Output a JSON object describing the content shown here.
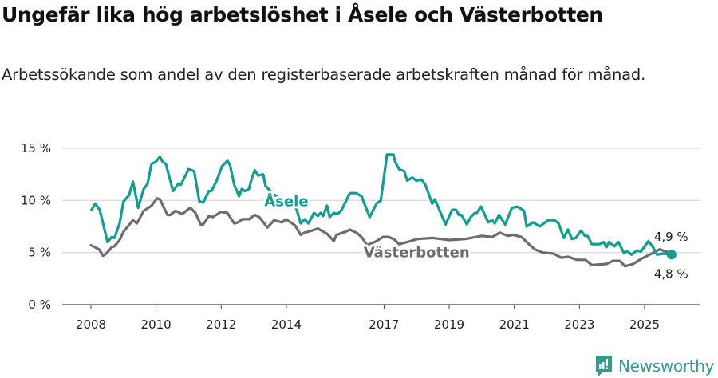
{
  "colors": {
    "asele": "#0f9e92",
    "vasterbotten": "#6d6b72",
    "grid": "#dddddd",
    "axis": "#444444",
    "brand": "#2f9c8c"
  },
  "chart_data": {
    "type": "line",
    "title": "Ungefär lika hög arbetslöshet i Åsele och Västerbotten",
    "subtitle": "Arbetssökande som andel av den registerbaserade arbetskraften månad för månad.",
    "xlabel": "",
    "ylabel": "",
    "xlim": [
      2007.1,
      2026.7
    ],
    "ylim": [
      0,
      15
    ],
    "y_ticks": [
      {
        "v": 0,
        "label": "0 %"
      },
      {
        "v": 5,
        "label": "5 %"
      },
      {
        "v": 10,
        "label": "10 %"
      },
      {
        "v": 15,
        "label": "15 %"
      }
    ],
    "x_ticks": [
      {
        "v": 2008,
        "label": "2008"
      },
      {
        "v": 2010,
        "label": "2010"
      },
      {
        "v": 2012,
        "label": "2012"
      },
      {
        "v": 2014,
        "label": "2014"
      },
      {
        "v": 2017,
        "label": "2017"
      },
      {
        "v": 2019,
        "label": "2019"
      },
      {
        "v": 2021,
        "label": "2021"
      },
      {
        "v": 2023,
        "label": "2023"
      },
      {
        "v": 2025,
        "label": "2025"
      }
    ],
    "grid": true,
    "series": [
      {
        "name": "Åsele",
        "label_at": [
          2014.0,
          9.9
        ],
        "end_label": "4,8 %",
        "points": [
          [
            2008.02,
            9.1
          ],
          [
            2008.13,
            9.7
          ],
          [
            2008.27,
            9.1
          ],
          [
            2008.51,
            6.0
          ],
          [
            2008.64,
            6.5
          ],
          [
            2008.72,
            6.4
          ],
          [
            2008.88,
            7.8
          ],
          [
            2009.0,
            9.9
          ],
          [
            2009.17,
            10.5
          ],
          [
            2009.29,
            11.8
          ],
          [
            2009.45,
            9.3
          ],
          [
            2009.62,
            11.1
          ],
          [
            2009.74,
            11.6
          ],
          [
            2009.86,
            13.5
          ],
          [
            2009.99,
            13.7
          ],
          [
            2010.12,
            14.2
          ],
          [
            2010.2,
            13.7
          ],
          [
            2010.3,
            13.5
          ],
          [
            2010.52,
            10.9
          ],
          [
            2010.68,
            11.6
          ],
          [
            2010.76,
            11.5
          ],
          [
            2011.0,
            13.0
          ],
          [
            2011.17,
            12.8
          ],
          [
            2011.33,
            9.9
          ],
          [
            2011.45,
            9.8
          ],
          [
            2011.62,
            10.9
          ],
          [
            2011.7,
            10.9
          ],
          [
            2011.86,
            11.9
          ],
          [
            2012.03,
            13.3
          ],
          [
            2012.19,
            13.8
          ],
          [
            2012.27,
            13.4
          ],
          [
            2012.4,
            11.5
          ],
          [
            2012.55,
            10.4
          ],
          [
            2012.63,
            11.1
          ],
          [
            2012.73,
            10.9
          ],
          [
            2012.85,
            11.1
          ],
          [
            2012.93,
            12.0
          ],
          [
            2013.03,
            12.9
          ],
          [
            2013.13,
            12.4
          ],
          [
            2013.29,
            12.5
          ],
          [
            2013.36,
            11.4
          ],
          [
            2013.6,
            10.6
          ],
          [
            2013.85,
            10.1
          ],
          [
            2014.1,
            9.7
          ],
          [
            2014.31,
            9.2
          ],
          [
            2014.44,
            7.8
          ],
          [
            2014.56,
            8.2
          ],
          [
            2014.68,
            7.8
          ],
          [
            2014.85,
            8.8
          ],
          [
            2014.97,
            8.5
          ],
          [
            2015.05,
            8.8
          ],
          [
            2015.13,
            8.5
          ],
          [
            2015.25,
            9.5
          ],
          [
            2015.33,
            8.4
          ],
          [
            2015.46,
            8.8
          ],
          [
            2015.58,
            8.7
          ],
          [
            2015.7,
            9.1
          ],
          [
            2015.95,
            10.7
          ],
          [
            2016.15,
            10.7
          ],
          [
            2016.31,
            10.4
          ],
          [
            2016.56,
            8.4
          ],
          [
            2016.77,
            9.7
          ],
          [
            2016.9,
            10.0
          ],
          [
            2017.09,
            14.4
          ],
          [
            2017.29,
            14.4
          ],
          [
            2017.34,
            13.7
          ],
          [
            2017.46,
            13.0
          ],
          [
            2017.62,
            12.8
          ],
          [
            2017.71,
            11.9
          ],
          [
            2017.87,
            12.2
          ],
          [
            2017.99,
            11.9
          ],
          [
            2018.15,
            12.0
          ],
          [
            2018.27,
            11.5
          ],
          [
            2018.48,
            9.7
          ],
          [
            2018.56,
            10.1
          ],
          [
            2018.89,
            7.7
          ],
          [
            2019.09,
            9.1
          ],
          [
            2019.21,
            9.1
          ],
          [
            2019.3,
            8.6
          ],
          [
            2019.38,
            8.6
          ],
          [
            2019.54,
            7.7
          ],
          [
            2019.66,
            8.4
          ],
          [
            2019.79,
            8.8
          ],
          [
            2019.85,
            8.8
          ],
          [
            2019.98,
            9.4
          ],
          [
            2020.2,
            7.9
          ],
          [
            2020.32,
            8.1
          ],
          [
            2020.4,
            7.8
          ],
          [
            2020.53,
            8.6
          ],
          [
            2020.72,
            7.7
          ],
          [
            2020.93,
            9.3
          ],
          [
            2021.1,
            9.4
          ],
          [
            2021.3,
            9.0
          ],
          [
            2021.38,
            7.5
          ],
          [
            2021.58,
            7.9
          ],
          [
            2021.78,
            7.5
          ],
          [
            2022.04,
            8.1
          ],
          [
            2022.24,
            8.1
          ],
          [
            2022.36,
            7.8
          ],
          [
            2022.52,
            6.4
          ],
          [
            2022.65,
            7.2
          ],
          [
            2022.77,
            6.3
          ],
          [
            2022.89,
            6.4
          ],
          [
            2023.05,
            7.1
          ],
          [
            2023.17,
            6.6
          ],
          [
            2023.25,
            6.6
          ],
          [
            2023.38,
            5.8
          ],
          [
            2023.62,
            5.8
          ],
          [
            2023.75,
            6.0
          ],
          [
            2023.83,
            5.5
          ],
          [
            2023.91,
            6.0
          ],
          [
            2024.07,
            5.6
          ],
          [
            2024.2,
            6.0
          ],
          [
            2024.36,
            5.0
          ],
          [
            2024.48,
            5.1
          ],
          [
            2024.6,
            4.8
          ],
          [
            2024.77,
            5.2
          ],
          [
            2024.89,
            5.1
          ],
          [
            2025.12,
            6.1
          ],
          [
            2025.26,
            5.5
          ],
          [
            2025.38,
            4.8
          ],
          [
            2025.58,
            4.9
          ],
          [
            2025.83,
            4.8
          ]
        ]
      },
      {
        "name": "Västerbotten",
        "label_at": [
          2018.0,
          5.0
        ],
        "end_label": "4,9 %",
        "points": [
          [
            2008.0,
            5.7
          ],
          [
            2008.25,
            5.3
          ],
          [
            2008.37,
            4.7
          ],
          [
            2008.47,
            4.9
          ],
          [
            2008.64,
            5.5
          ],
          [
            2008.72,
            5.6
          ],
          [
            2008.88,
            6.2
          ],
          [
            2009.0,
            7.0
          ],
          [
            2009.29,
            8.1
          ],
          [
            2009.41,
            7.8
          ],
          [
            2009.62,
            9.0
          ],
          [
            2009.86,
            9.5
          ],
          [
            2010.03,
            10.2
          ],
          [
            2010.12,
            10.1
          ],
          [
            2010.35,
            8.6
          ],
          [
            2010.43,
            8.6
          ],
          [
            2010.6,
            9.0
          ],
          [
            2010.8,
            8.7
          ],
          [
            2011.05,
            9.3
          ],
          [
            2011.21,
            8.8
          ],
          [
            2011.37,
            7.7
          ],
          [
            2011.45,
            7.7
          ],
          [
            2011.62,
            8.5
          ],
          [
            2011.74,
            8.4
          ],
          [
            2011.99,
            8.9
          ],
          [
            2012.19,
            8.8
          ],
          [
            2012.4,
            7.8
          ],
          [
            2012.52,
            7.9
          ],
          [
            2012.65,
            8.2
          ],
          [
            2012.85,
            8.2
          ],
          [
            2013.03,
            8.6
          ],
          [
            2013.17,
            8.4
          ],
          [
            2013.42,
            7.4
          ],
          [
            2013.62,
            8.1
          ],
          [
            2013.87,
            7.9
          ],
          [
            2013.99,
            8.2
          ],
          [
            2014.27,
            7.6
          ],
          [
            2014.44,
            6.7
          ],
          [
            2014.56,
            6.9
          ],
          [
            2014.68,
            7.0
          ],
          [
            2014.97,
            7.3
          ],
          [
            2015.25,
            6.8
          ],
          [
            2015.46,
            6.1
          ],
          [
            2015.54,
            6.7
          ],
          [
            2015.83,
            7.0
          ],
          [
            2015.95,
            7.2
          ],
          [
            2016.15,
            6.9
          ],
          [
            2016.31,
            6.5
          ],
          [
            2016.48,
            5.7
          ],
          [
            2016.77,
            6.1
          ],
          [
            2016.97,
            6.5
          ],
          [
            2017.13,
            6.5
          ],
          [
            2017.3,
            6.3
          ],
          [
            2017.46,
            5.8
          ],
          [
            2017.7,
            6.0
          ],
          [
            2018.03,
            6.3
          ],
          [
            2018.5,
            6.4
          ],
          [
            2019.0,
            6.2
          ],
          [
            2019.5,
            6.3
          ],
          [
            2020.0,
            6.6
          ],
          [
            2020.32,
            6.5
          ],
          [
            2020.56,
            6.9
          ],
          [
            2020.8,
            6.6
          ],
          [
            2020.95,
            6.7
          ],
          [
            2021.22,
            6.5
          ],
          [
            2021.45,
            5.8
          ],
          [
            2021.63,
            5.3
          ],
          [
            2021.87,
            5.0
          ],
          [
            2022.2,
            4.9
          ],
          [
            2022.45,
            4.5
          ],
          [
            2022.65,
            4.6
          ],
          [
            2022.93,
            4.3
          ],
          [
            2023.18,
            4.3
          ],
          [
            2023.38,
            3.8
          ],
          [
            2023.83,
            3.9
          ],
          [
            2024.03,
            4.2
          ],
          [
            2024.24,
            4.2
          ],
          [
            2024.4,
            3.7
          ],
          [
            2024.65,
            3.9
          ],
          [
            2024.9,
            4.4
          ],
          [
            2025.22,
            4.9
          ],
          [
            2025.46,
            5.3
          ],
          [
            2025.66,
            5.1
          ],
          [
            2025.83,
            4.9
          ]
        ]
      }
    ]
  },
  "branding": {
    "name": "Newsworthy"
  }
}
